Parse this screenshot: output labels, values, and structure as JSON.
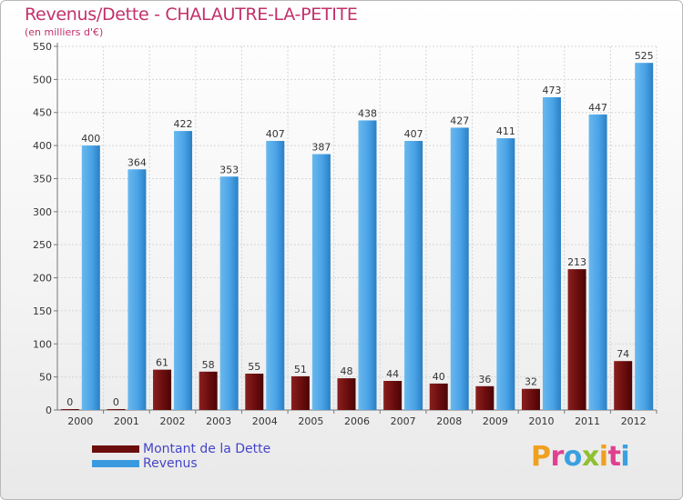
{
  "title": "Revenus/Dette - CHALAUTRE-LA-PETITE",
  "subtitle": "(en milliers d'€)",
  "logo": {
    "text": "Proxiti",
    "letters": [
      {
        "ch": "P",
        "color": "#f0a020"
      },
      {
        "ch": "r",
        "color": "#e04090"
      },
      {
        "ch": "o",
        "color": "#3aa0e0"
      },
      {
        "ch": "x",
        "color": "#90c030"
      },
      {
        "ch": "i",
        "color": "#f0a020"
      },
      {
        "ch": "t",
        "color": "#e04090"
      },
      {
        "ch": "i",
        "color": "#3aa0e0"
      }
    ]
  },
  "legend": [
    {
      "label": "Montant de la Dette",
      "color": "#6b0d0d"
    },
    {
      "label": "Revenus",
      "color": "#3a9ae0"
    }
  ],
  "chart_data": {
    "type": "bar",
    "title": "Revenus/Dette - CHALAUTRE-LA-PETITE",
    "subtitle": "(en milliers d'€)",
    "categories": [
      "2000",
      "2001",
      "2002",
      "2003",
      "2004",
      "2005",
      "2006",
      "2007",
      "2008",
      "2009",
      "2010",
      "2011",
      "2012"
    ],
    "series": [
      {
        "name": "Montant de la Dette",
        "color": "#6b0d0d",
        "values": [
          0,
          0,
          61,
          58,
          55,
          51,
          48,
          44,
          40,
          36,
          32,
          213,
          74
        ]
      },
      {
        "name": "Revenus",
        "color": "#3a9ae0",
        "values": [
          400,
          364,
          422,
          353,
          407,
          387,
          438,
          407,
          427,
          411,
          473,
          447,
          525
        ]
      }
    ],
    "ylim": [
      0,
      550
    ],
    "yticks": [
      0,
      50,
      100,
      150,
      200,
      250,
      300,
      350,
      400,
      450,
      500,
      550
    ],
    "grid": true,
    "legend_position": "bottom-left"
  }
}
